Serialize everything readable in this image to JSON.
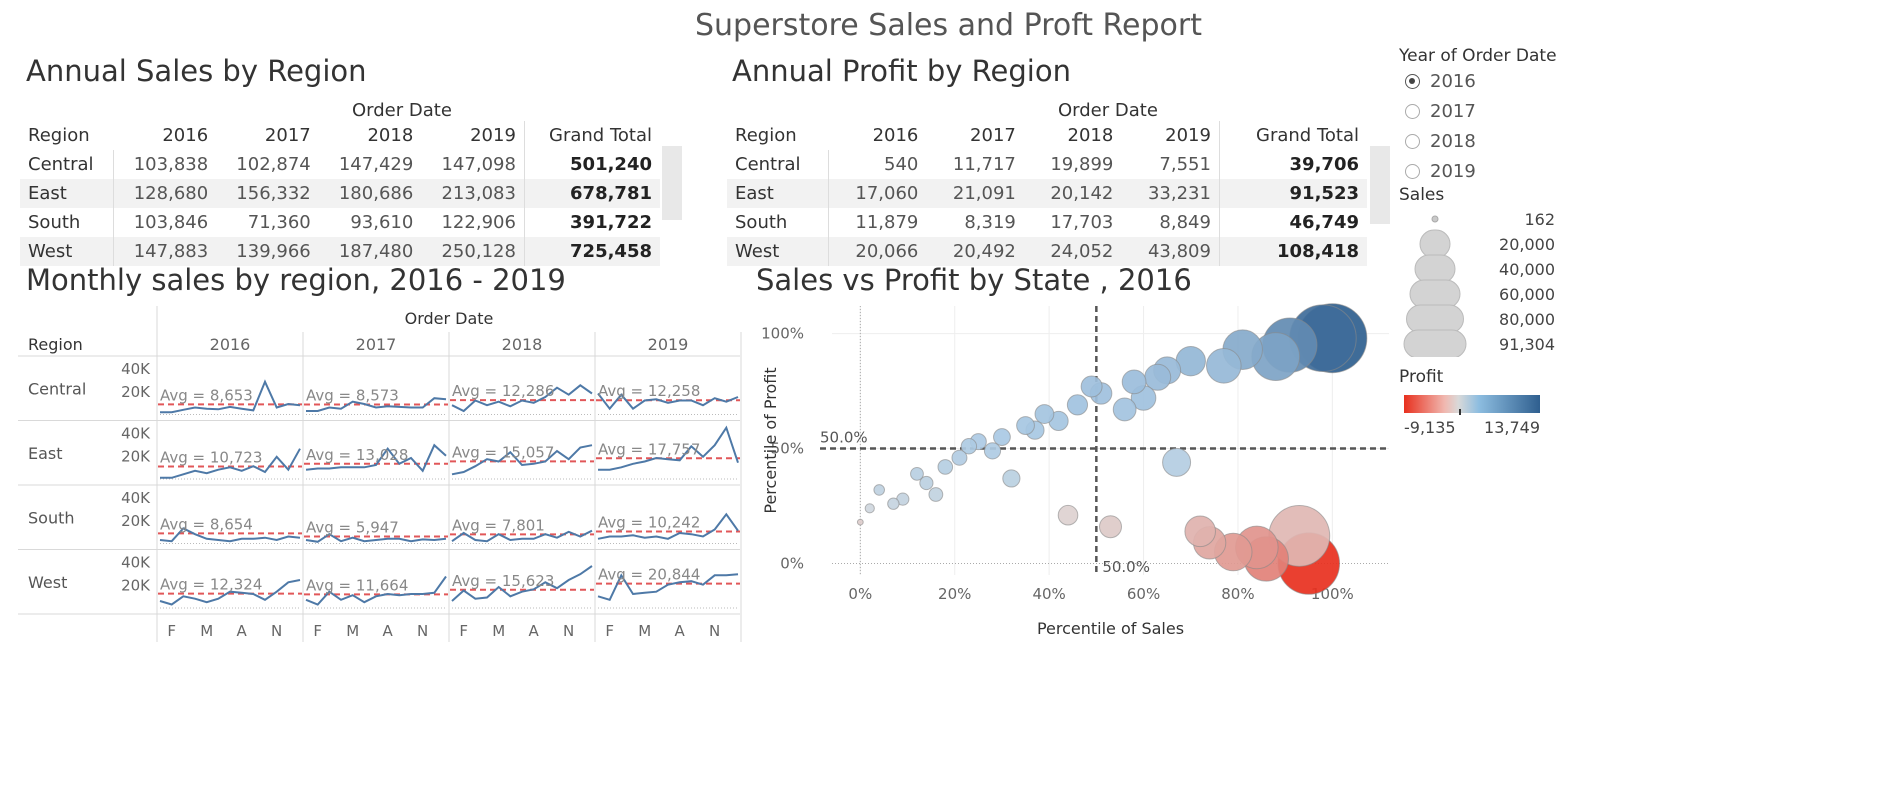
{
  "report_title": "Superstore Sales and Proft Report",
  "sales_table": {
    "title": "Annual Sales by Region",
    "col_group": "Order Date",
    "headers": [
      "Region",
      "2016",
      "2017",
      "2018",
      "2019",
      "Grand Total"
    ],
    "rows": [
      [
        "Central",
        "103,838",
        "102,874",
        "147,429",
        "147,098",
        "501,240"
      ],
      [
        "East",
        "128,680",
        "156,332",
        "180,686",
        "213,083",
        "678,781"
      ],
      [
        "South",
        "103,846",
        "71,360",
        "93,610",
        "122,906",
        "391,722"
      ],
      [
        "West",
        "147,883",
        "139,966",
        "187,480",
        "250,128",
        "725,458"
      ]
    ]
  },
  "profit_table": {
    "title": "Annual Profit by Region",
    "col_group": "Order Date",
    "headers": [
      "Region",
      "2016",
      "2017",
      "2018",
      "2019",
      "Grand Total"
    ],
    "rows": [
      [
        "Central",
        "540",
        "11,717",
        "19,899",
        "7,551",
        "39,706"
      ],
      [
        "East",
        "17,060",
        "21,091",
        "20,142",
        "33,231",
        "91,523"
      ],
      [
        "South",
        "11,879",
        "8,319",
        "17,703",
        "8,849",
        "46,749"
      ],
      [
        "West",
        "20,066",
        "20,492",
        "24,052",
        "43,809",
        "108,418"
      ]
    ]
  },
  "year_filter": {
    "title": "Year of Order Date",
    "options": [
      "2016",
      "2017",
      "2018",
      "2019"
    ],
    "selected": "2016"
  },
  "sales_legend": {
    "title": "Sales",
    "labels": [
      "162",
      "20,000",
      "40,000",
      "60,000",
      "80,000",
      "91,304"
    ]
  },
  "profit_legend": {
    "title": "Profit",
    "min_label": "-9,135",
    "max_label": "13,749",
    "colors": [
      "#e8301e",
      "#f0b8b0",
      "#d9d9d9",
      "#8dbde0",
      "#2f5f8f"
    ]
  },
  "monthly": {
    "title": "Monthly sales by region, 2016 - 2019",
    "col_group": "Order Date",
    "region_label": "Region",
    "years": [
      "2016",
      "2017",
      "2018",
      "2019"
    ],
    "regions": [
      "Central",
      "East",
      "South",
      "West"
    ],
    "y_ticks": [
      "40K",
      "20K"
    ],
    "x_ticks": [
      "F",
      "M",
      "A",
      "N"
    ],
    "line_color": "#4e79a7",
    "avg_color": "#e15759",
    "chart_data": {
      "type": "line",
      "y_range": [
        0,
        45000
      ],
      "panels": [
        {
          "region": "Central",
          "year": "2016",
          "avg_label": "Avg = 8,653",
          "avg": 8653,
          "values": [
            2000,
            2000,
            4000,
            6000,
            5000,
            4500,
            6500,
            5000,
            3500,
            28000,
            6000,
            9000,
            8000
          ]
        },
        {
          "region": "Central",
          "year": "2017",
          "avg_label": "Avg = 8,573",
          "avg": 8573,
          "values": [
            3000,
            3000,
            6000,
            5000,
            11000,
            9000,
            6000,
            7000,
            6500,
            6000,
            6000,
            14000,
            13000
          ]
        },
        {
          "region": "Central",
          "year": "2018",
          "avg_label": "Avg = 12,286",
          "avg": 12286,
          "values": [
            8000,
            3000,
            12000,
            8000,
            11000,
            7000,
            12000,
            10000,
            15000,
            23000,
            17000,
            25000,
            18000
          ]
        },
        {
          "region": "Central",
          "year": "2019",
          "avg_label": "Avg = 12,258",
          "avg": 12258,
          "values": [
            18000,
            5000,
            17000,
            5000,
            12000,
            13000,
            10000,
            12000,
            12000,
            8000,
            14000,
            11000,
            15000
          ]
        },
        {
          "region": "East",
          "year": "2016",
          "avg_label": "Avg = 10,723",
          "avg": 10723,
          "values": [
            1000,
            1000,
            4000,
            7000,
            5000,
            8000,
            10000,
            7000,
            11000,
            6000,
            19000,
            8000,
            26000
          ]
        },
        {
          "region": "East",
          "year": "2017",
          "avg_label": "Avg = 13,028",
          "avg": 13028,
          "values": [
            8000,
            9000,
            9000,
            10000,
            10000,
            10000,
            12000,
            26000,
            13000,
            18000,
            7000,
            29000,
            20000
          ]
        },
        {
          "region": "East",
          "year": "2018",
          "avg_label": "Avg = 15,057",
          "avg": 15057,
          "values": [
            4000,
            6000,
            11000,
            17000,
            15000,
            23000,
            12000,
            13000,
            15000,
            24000,
            17000,
            27000,
            29000
          ]
        },
        {
          "region": "East",
          "year": "2019",
          "avg_label": "Avg = 17,757",
          "avg": 17757,
          "values": [
            8000,
            8000,
            10000,
            13000,
            15000,
            18000,
            17000,
            16000,
            28000,
            19000,
            29000,
            44000,
            14000
          ]
        },
        {
          "region": "South",
          "year": "2016",
          "avg_label": "Avg = 8,654",
          "avg": 8654,
          "values": [
            3000,
            2000,
            13000,
            8000,
            4000,
            3000,
            2000,
            4000,
            4000,
            5000,
            3000,
            6000,
            5000
          ]
        },
        {
          "region": "South",
          "year": "2017",
          "avg_label": "Avg = 5,947",
          "avg": 5947,
          "values": [
            3000,
            1500,
            8000,
            2000,
            5000,
            2000,
            3000,
            4000,
            4000,
            2000,
            3500,
            3000,
            4000
          ]
        },
        {
          "region": "South",
          "year": "2018",
          "avg_label": "Avg = 7,801",
          "avg": 7801,
          "values": [
            2000,
            9000,
            3000,
            2000,
            8000,
            3000,
            4000,
            4000,
            8000,
            5000,
            10000,
            6000,
            11000
          ]
        },
        {
          "region": "South",
          "year": "2019",
          "avg_label": "Avg = 10,242",
          "avg": 10242,
          "values": [
            4000,
            6000,
            6000,
            7000,
            5000,
            6000,
            4000,
            9000,
            8000,
            6000,
            12000,
            25000,
            11000
          ]
        },
        {
          "region": "West",
          "year": "2016",
          "avg_label": "Avg = 12,324",
          "avg": 12324,
          "values": [
            6000,
            3000,
            10000,
            8000,
            5000,
            8000,
            14000,
            13000,
            12000,
            7000,
            14000,
            22000,
            24000
          ]
        },
        {
          "region": "West",
          "year": "2017",
          "avg_label": "Avg = 11,664",
          "avg": 11664,
          "values": [
            7000,
            3000,
            14000,
            7000,
            11000,
            5000,
            10000,
            12000,
            11000,
            12000,
            12000,
            13000,
            27000
          ]
        },
        {
          "region": "West",
          "year": "2018",
          "avg_label": "Avg = 15,623",
          "avg": 15623,
          "values": [
            6000,
            15000,
            8000,
            9000,
            18000,
            10000,
            14000,
            16000,
            22000,
            17000,
            24000,
            29000,
            36000
          ]
        },
        {
          "region": "West",
          "year": "2019",
          "avg_label": "Avg = 20,844",
          "avg": 20844,
          "values": [
            10000,
            7000,
            28000,
            12000,
            13000,
            14000,
            20000,
            22000,
            23000,
            20000,
            28000,
            28000,
            29000
          ]
        }
      ]
    }
  },
  "scatter": {
    "title": "Sales vs Profit by State , 2016",
    "xlabel": "Percentile of Sales",
    "ylabel": "Percentile of Profit",
    "ref_label_h": "50.0%",
    "ref_label_v": "50.0%",
    "x_ticks": [
      "0%",
      "20%",
      "40%",
      "60%",
      "80%",
      "100%"
    ],
    "y_ticks": [
      "100%",
      "50%",
      "0%"
    ],
    "chart_data": {
      "type": "scatter",
      "xlim": [
        -0.06,
        1.12
      ],
      "ylim": [
        -0.05,
        1.12
      ],
      "reference_lines": {
        "x": 0.5,
        "y": 0.5
      },
      "points": [
        {
          "x": 0.0,
          "y": 0.18,
          "sales": 162,
          "profit": -40
        },
        {
          "x": 0.02,
          "y": 0.24,
          "sales": 800,
          "profit": 10
        },
        {
          "x": 0.04,
          "y": 0.32,
          "sales": 1200,
          "profit": 60
        },
        {
          "x": 0.07,
          "y": 0.26,
          "sales": 1500,
          "profit": 30
        },
        {
          "x": 0.09,
          "y": 0.28,
          "sales": 1800,
          "profit": 40
        },
        {
          "x": 0.12,
          "y": 0.39,
          "sales": 2000,
          "profit": 90
        },
        {
          "x": 0.14,
          "y": 0.35,
          "sales": 2200,
          "profit": 70
        },
        {
          "x": 0.16,
          "y": 0.3,
          "sales": 2400,
          "profit": 50
        },
        {
          "x": 0.18,
          "y": 0.42,
          "sales": 2800,
          "profit": 110
        },
        {
          "x": 0.21,
          "y": 0.46,
          "sales": 3000,
          "profit": 130
        },
        {
          "x": 0.23,
          "y": 0.51,
          "sales": 3200,
          "profit": 160
        },
        {
          "x": 0.25,
          "y": 0.53,
          "sales": 3500,
          "profit": 180
        },
        {
          "x": 0.28,
          "y": 0.49,
          "sales": 3700,
          "profit": 150
        },
        {
          "x": 0.3,
          "y": 0.55,
          "sales": 4000,
          "profit": 200
        },
        {
          "x": 0.32,
          "y": 0.37,
          "sales": 4200,
          "profit": 80
        },
        {
          "x": 0.35,
          "y": 0.6,
          "sales": 4600,
          "profit": 260
        },
        {
          "x": 0.37,
          "y": 0.58,
          "sales": 4800,
          "profit": 240
        },
        {
          "x": 0.39,
          "y": 0.65,
          "sales": 5200,
          "profit": 330
        },
        {
          "x": 0.42,
          "y": 0.62,
          "sales": 5500,
          "profit": 290
        },
        {
          "x": 0.44,
          "y": 0.21,
          "sales": 5800,
          "profit": -20
        },
        {
          "x": 0.46,
          "y": 0.69,
          "sales": 6200,
          "profit": 400
        },
        {
          "x": 0.49,
          "y": 0.77,
          "sales": 6800,
          "profit": 520
        },
        {
          "x": 0.51,
          "y": 0.74,
          "sales": 7200,
          "profit": 480
        },
        {
          "x": 0.53,
          "y": 0.16,
          "sales": 7600,
          "profit": -60
        },
        {
          "x": 0.56,
          "y": 0.67,
          "sales": 8200,
          "profit": 360
        },
        {
          "x": 0.58,
          "y": 0.79,
          "sales": 9000,
          "profit": 600
        },
        {
          "x": 0.6,
          "y": 0.72,
          "sales": 9800,
          "profit": 450
        },
        {
          "x": 0.63,
          "y": 0.81,
          "sales": 11000,
          "profit": 680
        },
        {
          "x": 0.65,
          "y": 0.84,
          "sales": 12000,
          "profit": 760
        },
        {
          "x": 0.67,
          "y": 0.44,
          "sales": 13000,
          "profit": 120
        },
        {
          "x": 0.7,
          "y": 0.88,
          "sales": 14500,
          "profit": 900
        },
        {
          "x": 0.72,
          "y": 0.14,
          "sales": 16000,
          "profit": -400
        },
        {
          "x": 0.74,
          "y": 0.09,
          "sales": 18000,
          "profit": -700
        },
        {
          "x": 0.77,
          "y": 0.86,
          "sales": 21000,
          "profit": 820
        },
        {
          "x": 0.79,
          "y": 0.05,
          "sales": 25000,
          "profit": -1100
        },
        {
          "x": 0.81,
          "y": 0.93,
          "sales": 28000,
          "profit": 1800
        },
        {
          "x": 0.84,
          "y": 0.07,
          "sales": 33000,
          "profit": -1300
        },
        {
          "x": 0.86,
          "y": 0.02,
          "sales": 36000,
          "profit": -2200
        },
        {
          "x": 0.88,
          "y": 0.9,
          "sales": 42000,
          "profit": 2400
        },
        {
          "x": 0.91,
          "y": 0.95,
          "sales": 55000,
          "profit": 5200
        },
        {
          "x": 0.93,
          "y": 0.12,
          "sales": 70000,
          "profit": -300
        },
        {
          "x": 0.95,
          "y": 0.0,
          "sales": 72000,
          "profit": -9135
        },
        {
          "x": 0.98,
          "y": 0.98,
          "sales": 85000,
          "profit": 10500
        },
        {
          "x": 1.0,
          "y": 0.98,
          "sales": 91304,
          "profit": 13749
        }
      ]
    }
  }
}
